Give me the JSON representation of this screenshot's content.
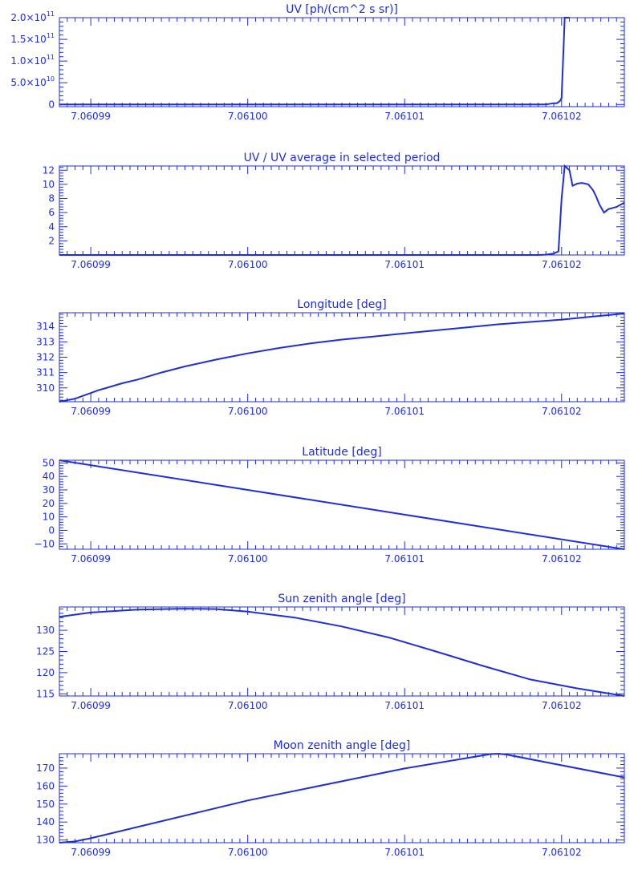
{
  "colors": {
    "ink": "#1f2fd6",
    "background": "#ffffff"
  },
  "chart_data": [
    {
      "type": "line",
      "title": "UV [ph/(cm^2 s sr)]",
      "xlabel": "",
      "ylabel": "",
      "xlim": [
        7.060988,
        7.061024
      ],
      "ylim": [
        -5000000000.0,
        200000000000.0
      ],
      "x_ticks": [
        7.06099,
        7.061,
        7.06101,
        7.06102
      ],
      "x_tick_labels": [
        "7.06099",
        "7.06100",
        "7.06101",
        "7.06102"
      ],
      "y_ticks": [
        0,
        50000000000.0,
        100000000000.0,
        150000000000.0,
        200000000000.0
      ],
      "y_tick_labels": [
        {
          "base": "0",
          "exp": ""
        },
        {
          "base": "5.0×10",
          "exp": "10"
        },
        {
          "base": "1.0×10",
          "exp": "11"
        },
        {
          "base": "1.5×10",
          "exp": "11"
        },
        {
          "base": "2.0×10",
          "exp": "11"
        }
      ],
      "series": [
        {
          "x": [
            7.060988,
            7.061,
            7.06101,
            7.061019,
            7.0610195,
            7.0610197,
            7.0610199,
            7.06102,
            7.0610202,
            7.0610205
          ],
          "y": [
            0,
            0,
            0,
            0,
            3000000000.0,
            3000000000.0,
            8000000000.0,
            15000000000.0,
            200000000000.0,
            200000000000.0
          ]
        }
      ]
    },
    {
      "type": "line",
      "title": "UV / UV average in selected period",
      "xlabel": "",
      "ylabel": "",
      "xlim": [
        7.060988,
        7.061024
      ],
      "ylim": [
        0,
        12.6
      ],
      "x_ticks": [
        7.06099,
        7.061,
        7.06101,
        7.06102
      ],
      "x_tick_labels": [
        "7.06099",
        "7.06100",
        "7.06101",
        "7.06102"
      ],
      "y_ticks": [
        2,
        4,
        6,
        8,
        10,
        12
      ],
      "y_tick_labels": [
        {
          "base": "2",
          "exp": ""
        },
        {
          "base": "4",
          "exp": ""
        },
        {
          "base": "6",
          "exp": ""
        },
        {
          "base": "8",
          "exp": ""
        },
        {
          "base": "10",
          "exp": ""
        },
        {
          "base": "12",
          "exp": ""
        }
      ],
      "series": [
        {
          "x": [
            7.060988,
            7.061,
            7.06101,
            7.0610185,
            7.061019,
            7.0610195,
            7.0610198,
            7.06102,
            7.0610202,
            7.0610205,
            7.0610207,
            7.061021,
            7.0610213,
            7.0610217,
            7.061022,
            7.0610222,
            7.0610224,
            7.0610227,
            7.061023,
            7.0610235,
            7.061024
          ],
          "y": [
            0,
            0,
            0,
            0,
            0.05,
            0.2,
            0.5,
            8.0,
            12.6,
            12.0,
            9.8,
            10.1,
            10.2,
            10.0,
            9.2,
            8.3,
            7.2,
            6.0,
            6.5,
            6.8,
            7.4
          ]
        }
      ]
    },
    {
      "type": "line",
      "title": "Longitude [deg]",
      "xlabel": "",
      "ylabel": "",
      "xlim": [
        7.060988,
        7.061024
      ],
      "ylim": [
        309.1,
        314.9
      ],
      "x_ticks": [
        7.06099,
        7.061,
        7.06101,
        7.06102
      ],
      "x_tick_labels": [
        "7.06099",
        "7.06100",
        "7.06101",
        "7.06102"
      ],
      "y_ticks": [
        310,
        311,
        312,
        313,
        314
      ],
      "y_tick_labels": [
        {
          "base": "310",
          "exp": ""
        },
        {
          "base": "311",
          "exp": ""
        },
        {
          "base": "312",
          "exp": ""
        },
        {
          "base": "313",
          "exp": ""
        },
        {
          "base": "314",
          "exp": ""
        }
      ],
      "series": [
        {
          "x": [
            7.060988,
            7.060989,
            7.0609905,
            7.060992,
            7.060993,
            7.0609945,
            7.060996,
            7.060998,
            7.061,
            7.061002,
            7.061004,
            7.061006,
            7.061008,
            7.06101,
            7.061012,
            7.061014,
            7.061016,
            7.061018,
            7.06102,
            7.061022,
            7.061024
          ],
          "y": [
            309.1,
            309.3,
            309.85,
            310.3,
            310.55,
            311.0,
            311.4,
            311.85,
            312.25,
            312.6,
            312.9,
            313.15,
            313.35,
            313.55,
            313.75,
            313.95,
            314.15,
            314.3,
            314.45,
            314.65,
            314.85
          ]
        }
      ]
    },
    {
      "type": "line",
      "title": "Latitude [deg]",
      "xlabel": "",
      "ylabel": "",
      "xlim": [
        7.060988,
        7.061024
      ],
      "ylim": [
        -14,
        52
      ],
      "x_ticks": [
        7.06099,
        7.061,
        7.06101,
        7.06102
      ],
      "x_tick_labels": [
        "7.06099",
        "7.06100",
        "7.06101",
        "7.06102"
      ],
      "y_ticks": [
        -10,
        0,
        10,
        20,
        30,
        40,
        50
      ],
      "y_tick_labels": [
        {
          "base": "−10",
          "exp": ""
        },
        {
          "base": "0",
          "exp": ""
        },
        {
          "base": "10",
          "exp": ""
        },
        {
          "base": "20",
          "exp": ""
        },
        {
          "base": "30",
          "exp": ""
        },
        {
          "base": "40",
          "exp": ""
        },
        {
          "base": "50",
          "exp": ""
        }
      ],
      "series": [
        {
          "x": [
            7.060988,
            7.061024
          ],
          "y": [
            52,
            -14
          ]
        }
      ]
    },
    {
      "type": "line",
      "title": "Sun zenith angle [deg]",
      "xlabel": "",
      "ylabel": "",
      "xlim": [
        7.060988,
        7.061024
      ],
      "ylim": [
        114.5,
        135.5
      ],
      "x_ticks": [
        7.06099,
        7.061,
        7.06101,
        7.06102
      ],
      "x_tick_labels": [
        "7.06099",
        "7.06100",
        "7.06101",
        "7.06102"
      ],
      "y_ticks": [
        115,
        120,
        125,
        130
      ],
      "y_tick_labels": [
        {
          "base": "115",
          "exp": ""
        },
        {
          "base": "120",
          "exp": ""
        },
        {
          "base": "125",
          "exp": ""
        },
        {
          "base": "130",
          "exp": ""
        }
      ],
      "series": [
        {
          "x": [
            7.060988,
            7.06099,
            7.060993,
            7.060996,
            7.060998,
            7.061,
            7.061003,
            7.061006,
            7.061009,
            7.061012,
            7.061015,
            7.061018,
            7.061021,
            7.061024
          ],
          "y": [
            133.2,
            134.2,
            134.9,
            135.1,
            135.0,
            134.4,
            133.0,
            130.9,
            128.3,
            125.0,
            121.6,
            118.4,
            116.3,
            114.5
          ]
        }
      ]
    },
    {
      "type": "line",
      "title": "Moon zenith angle [deg]",
      "xlabel": "",
      "ylabel": "",
      "xlim": [
        7.060988,
        7.061024
      ],
      "ylim": [
        128.5,
        178
      ],
      "x_ticks": [
        7.06099,
        7.061,
        7.06101,
        7.06102
      ],
      "x_tick_labels": [
        "7.06099",
        "7.06100",
        "7.06101",
        "7.06102"
      ],
      "y_ticks": [
        130,
        140,
        150,
        160,
        170
      ],
      "y_tick_labels": [
        {
          "base": "130",
          "exp": ""
        },
        {
          "base": "140",
          "exp": ""
        },
        {
          "base": "150",
          "exp": ""
        },
        {
          "base": "160",
          "exp": ""
        },
        {
          "base": "170",
          "exp": ""
        }
      ],
      "series": [
        {
          "x": [
            7.060988,
            7.060989,
            7.06099,
            7.061,
            7.06101,
            7.0610155,
            7.061016,
            7.0610165,
            7.061024
          ],
          "y": [
            128.5,
            129.2,
            131.0,
            152.0,
            169.8,
            177.8,
            178.0,
            177.5,
            164.8
          ]
        }
      ]
    }
  ]
}
